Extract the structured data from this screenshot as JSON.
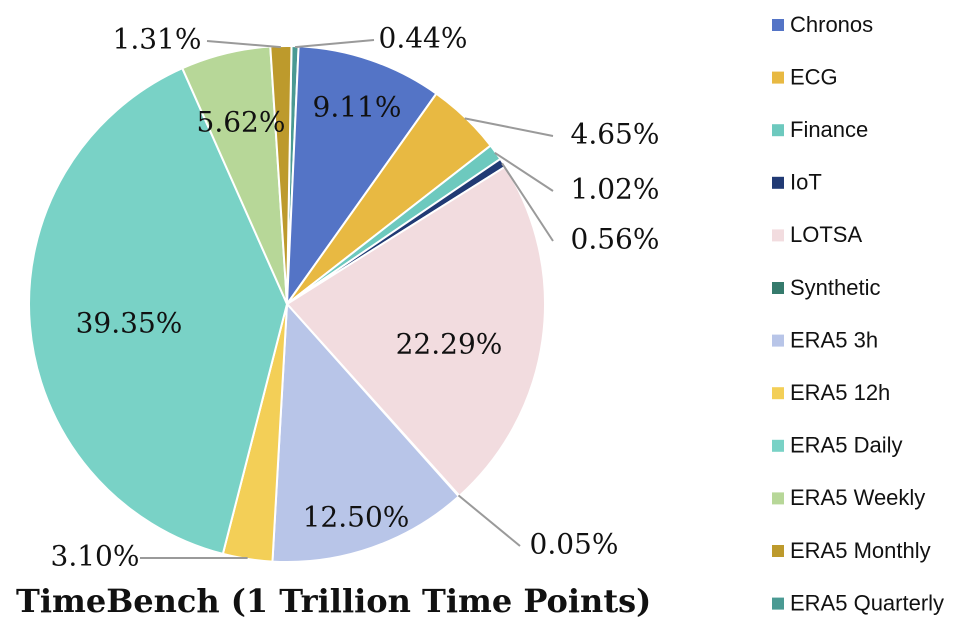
{
  "chart_data": {
    "type": "pie",
    "title": "TimeBench (1 Trillion Time Points)",
    "legend_position": "right",
    "slices": [
      {
        "name": "ERA5 Quarterly",
        "value": 0.44,
        "label": "0.44%",
        "color": "#4A9A93"
      },
      {
        "name": "Chronos",
        "value": 9.11,
        "label": "9.11%",
        "color": "#5474C6"
      },
      {
        "name": "ECG",
        "value": 4.65,
        "label": "4.65%",
        "color": "#E8B942"
      },
      {
        "name": "Finance",
        "value": 1.02,
        "label": "1.02%",
        "color": "#6DC9BE"
      },
      {
        "name": "IoT",
        "value": 0.56,
        "label": "0.56%",
        "color": "#213A74"
      },
      {
        "name": "LOTSA",
        "value": 22.29,
        "label": "22.29%",
        "color": "#F2DCDF"
      },
      {
        "name": "Synthetic",
        "value": 0.05,
        "label": "0.05%",
        "color": "#357A6C"
      },
      {
        "name": "ERA5 3h",
        "value": 12.5,
        "label": "12.50%",
        "color": "#B8C5E8"
      },
      {
        "name": "ERA5 12h",
        "value": 3.1,
        "label": "3.10%",
        "color": "#F3CF57"
      },
      {
        "name": "ERA5 Daily",
        "value": 39.35,
        "label": "39.35%",
        "color": "#79D2C6"
      },
      {
        "name": "ERA5 Weekly",
        "value": 5.62,
        "label": "5.62%",
        "color": "#B7D798"
      },
      {
        "name": "ERA5 Monthly",
        "value": 1.31,
        "label": "1.31%",
        "color": "#BD9A2C"
      }
    ],
    "legend": [
      {
        "name": "Chronos",
        "color": "#5474C6"
      },
      {
        "name": "ECG",
        "color": "#E8B942"
      },
      {
        "name": "Finance",
        "color": "#6DC9BE"
      },
      {
        "name": "IoT",
        "color": "#213A74"
      },
      {
        "name": "LOTSA",
        "color": "#F2DCDF"
      },
      {
        "name": "Synthetic",
        "color": "#357A6C"
      },
      {
        "name": "ERA5 3h",
        "color": "#B8C5E8"
      },
      {
        "name": "ERA5 12h",
        "color": "#F3CF57"
      },
      {
        "name": "ERA5 Daily",
        "color": "#79D2C6"
      },
      {
        "name": "ERA5 Weekly",
        "color": "#B7D798"
      },
      {
        "name": "ERA5 Monthly",
        "color": "#BD9A2C"
      },
      {
        "name": "ERA5 Quarterly",
        "color": "#4A9A93"
      }
    ]
  }
}
